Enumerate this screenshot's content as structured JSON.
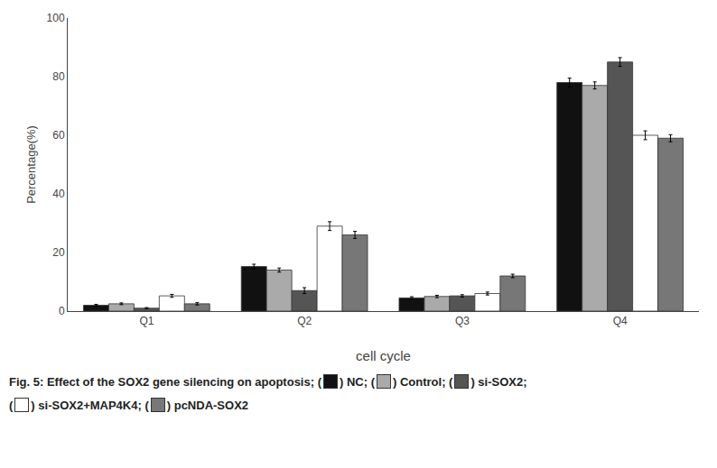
{
  "chart_data": {
    "type": "bar",
    "categories": [
      "Q1",
      "Q2",
      "Q3",
      "Q4"
    ],
    "series": [
      {
        "name": "NC",
        "color": "#111111",
        "values": [
          2.0,
          15.2,
          4.5,
          78.0
        ],
        "errors": [
          0.3,
          0.8,
          0.4,
          1.5
        ]
      },
      {
        "name": "Control",
        "color": "#aaaaaa",
        "values": [
          2.5,
          14.0,
          5.0,
          77.0
        ],
        "errors": [
          0.3,
          0.7,
          0.4,
          1.2
        ]
      },
      {
        "name": "si-SOX2",
        "color": "#555555",
        "values": [
          1.0,
          7.0,
          5.2,
          85.0
        ],
        "errors": [
          0.2,
          1.0,
          0.4,
          1.5
        ]
      },
      {
        "name": "si-SOX2+MAP4K4",
        "color": "#ffffff",
        "values": [
          5.2,
          29.0,
          6.0,
          60.0
        ],
        "errors": [
          0.5,
          1.5,
          0.5,
          1.5
        ]
      },
      {
        "name": "pcNDA-SOX2",
        "color": "#777777",
        "values": [
          2.5,
          26.0,
          12.0,
          59.0
        ],
        "errors": [
          0.4,
          1.2,
          0.6,
          1.2
        ]
      }
    ],
    "xlabel": "cell cycle",
    "ylabel": "Percentage(%)",
    "ylim": [
      0,
      100
    ],
    "yticks": [
      0,
      20,
      40,
      60,
      80,
      100
    ],
    "grid": false,
    "annotations": [
      "Fig. 5: Effect of the SOX2 gene silencing on apoptosis; (",
      ") NC; (",
      ") Control; (",
      ") si-SOX2;",
      "(",
      ") si-SOX2+MAP4K4; (",
      ") pcNDA-SOX2"
    ]
  }
}
